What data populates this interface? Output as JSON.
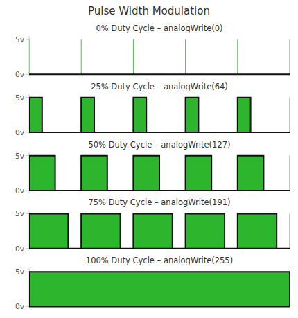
{
  "title": "Pulse Width Modulation",
  "chart_data": [
    {
      "type": "area",
      "title": "0% Duty Cycle – analogWrite(0)",
      "color": "#2db52d",
      "x": [
        0,
        5
      ],
      "values": [
        0,
        0
      ],
      "xlim": [
        0,
        5
      ],
      "xticks": [
        0,
        1,
        2,
        3,
        4,
        5
      ],
      "ylim": [
        -0.05,
        1.1
      ],
      "yticks": [
        {
          "value": 0,
          "label": "0v"
        },
        {
          "value": 1,
          "label": "5v"
        }
      ],
      "tick_labels": "y",
      "grid": true
    },
    {
      "type": "area",
      "title": "25% Duty Cycle – analogWrite(64)",
      "color": "#2db52d",
      "x": [
        0,
        0.25,
        0.25,
        1,
        1,
        1.25,
        1.25,
        2,
        2,
        2.25,
        2.25,
        3,
        3,
        3.25,
        3.25,
        4,
        4,
        4.25,
        4.25,
        5
      ],
      "values": [
        1,
        1,
        0,
        0,
        1,
        1,
        0,
        0,
        1,
        1,
        0,
        0,
        1,
        1,
        0,
        0,
        1,
        1,
        0,
        0
      ],
      "xlim": [
        0,
        5
      ],
      "xticks": [
        0,
        1,
        2,
        3,
        4,
        5
      ],
      "ylim": [
        -0.05,
        1.1
      ],
      "yticks": [
        {
          "value": 0,
          "label": "0v"
        },
        {
          "value": 1,
          "label": "5v"
        }
      ],
      "tick_labels": "y",
      "grid": true
    },
    {
      "type": "area",
      "title": "50% Duty Cycle – analogWrite(127)",
      "color": "#2db52d",
      "x": [
        0,
        0.5,
        0.5,
        1,
        1,
        1.5,
        1.5,
        2,
        2,
        2.5,
        2.5,
        3,
        3,
        3.5,
        3.5,
        4,
        4,
        4.5,
        4.5,
        5
      ],
      "values": [
        1,
        1,
        0,
        0,
        1,
        1,
        0,
        0,
        1,
        1,
        0,
        0,
        1,
        1,
        0,
        0,
        1,
        1,
        0,
        0
      ],
      "xlim": [
        0,
        5
      ],
      "xticks": [
        0,
        1,
        2,
        3,
        4,
        5
      ],
      "ylim": [
        -0.05,
        1.1
      ],
      "yticks": [
        {
          "value": 0,
          "label": "0v"
        },
        {
          "value": 1,
          "label": "5v"
        }
      ],
      "tick_labels": "y",
      "grid": true
    },
    {
      "type": "area",
      "title": "75% Duty Cycle – analogWrite(191)",
      "color": "#2db52d",
      "x": [
        0,
        0.75,
        0.75,
        1,
        1,
        1.75,
        1.75,
        2,
        2,
        2.75,
        2.75,
        3,
        3,
        3.75,
        3.75,
        4,
        4,
        4.75,
        4.75,
        5
      ],
      "values": [
        1,
        1,
        0,
        0,
        1,
        1,
        0,
        0,
        1,
        1,
        0,
        0,
        1,
        1,
        0,
        0,
        1,
        1,
        0,
        0
      ],
      "xlim": [
        0,
        5
      ],
      "xticks": [
        0,
        1,
        2,
        3,
        4,
        5
      ],
      "ylim": [
        -0.05,
        1.1
      ],
      "yticks": [
        {
          "value": 0,
          "label": "0v"
        },
        {
          "value": 1,
          "label": "5v"
        }
      ],
      "tick_labels": "y",
      "grid": true
    },
    {
      "type": "area",
      "title": "100% Duty Cycle – analogWrite(255)",
      "color": "#2db52d",
      "x": [
        0,
        5
      ],
      "values": [
        1,
        1
      ],
      "xlim": [
        0,
        5
      ],
      "xticks": [
        0,
        1,
        2,
        3,
        4,
        5
      ],
      "ylim": [
        -0.05,
        1.1
      ],
      "yticks": [
        {
          "value": 0,
          "label": "0v"
        },
        {
          "value": 1,
          "label": "5v"
        }
      ],
      "tick_labels": "y",
      "grid": true
    }
  ]
}
